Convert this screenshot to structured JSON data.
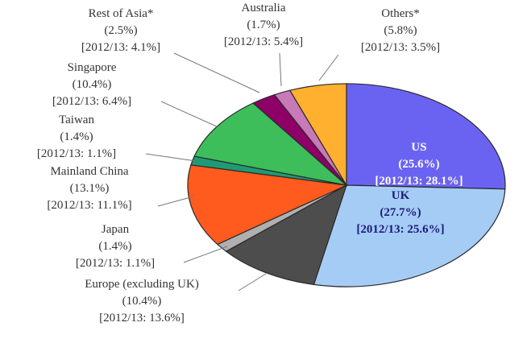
{
  "chart_data": {
    "type": "pie",
    "values_unit": "%",
    "slices": [
      {
        "name": "US",
        "value": 25.6,
        "color": "#6A63F2",
        "lines": [
          "US",
          "(25.6%)",
          "[2012/13: 28.1%]"
        ]
      },
      {
        "name": "UK",
        "value": 27.7,
        "color": "#A5CCF5",
        "lines": [
          "UK",
          "(27.7%)",
          "[2012/13: 25.6%]"
        ]
      },
      {
        "name": "Europe (excluding UK)",
        "value": 10.4,
        "color": "#4D4D4D",
        "lines": [
          "Europe (excluding UK)",
          "(10.4%)",
          "[2012/13: 13.6%]"
        ]
      },
      {
        "name": "Japan",
        "value": 1.4,
        "color": "#B0B0B0",
        "lines": [
          "Japan",
          "(1.4%)",
          "[2012/13: 1.1%]"
        ]
      },
      {
        "name": "Mainland China",
        "value": 13.1,
        "color": "#FF5B1E",
        "lines": [
          "Mainland China",
          "(13.1%)",
          "[2012/13: 11.1%]"
        ]
      },
      {
        "name": "Taiwan",
        "value": 1.4,
        "color": "#1F9B74",
        "lines": [
          "Taiwan",
          "(1.4%)",
          "[2012/13: 1.1%]"
        ]
      },
      {
        "name": "Singapore",
        "value": 10.4,
        "color": "#3DBE5A",
        "lines": [
          "Singapore",
          "(10.4%)",
          "[2012/13: 6.4%]"
        ]
      },
      {
        "name": "Rest of Asia*",
        "value": 2.5,
        "color": "#8E0067",
        "lines": [
          "Rest of Asia*",
          "(2.5%)",
          "[2012/13: 4.1%]"
        ]
      },
      {
        "name": "Australia",
        "value": 1.7,
        "color": "#C879B8",
        "lines": [
          "Australia",
          "(1.7%)",
          "[2012/13: 5.4%]"
        ]
      },
      {
        "name": "Others*",
        "value": 5.8,
        "color": "#FFB02E",
        "lines": [
          "Others*",
          "(5.8%)",
          "[2012/13: 3.5%]"
        ]
      }
    ]
  }
}
